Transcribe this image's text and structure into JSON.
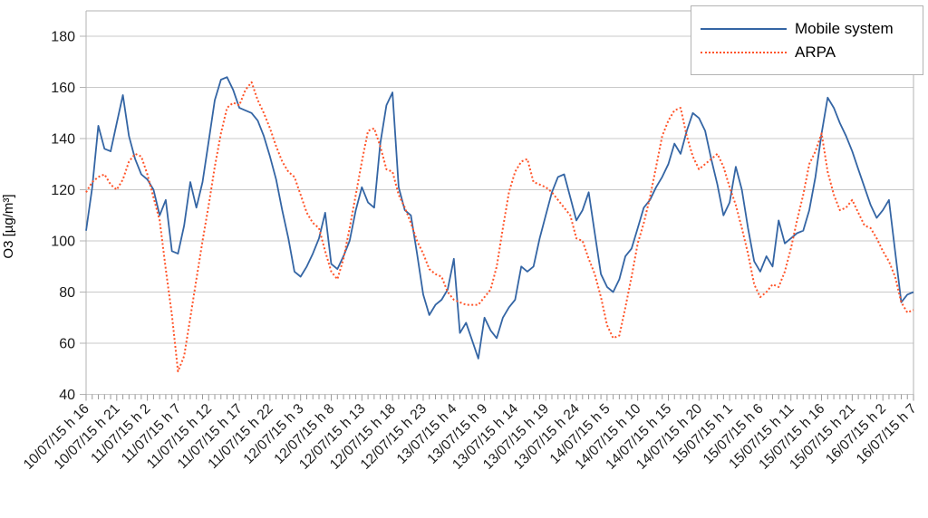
{
  "chart_data": {
    "type": "line",
    "title": "",
    "xlabel": "",
    "ylabel": "O3 [µg/m³]",
    "ylim": [
      40,
      180
    ],
    "ytick_step": 20,
    "ytick_labels": [
      40,
      60,
      80,
      100,
      120,
      140,
      160,
      180
    ],
    "grid": true,
    "legend_position": "top-right",
    "x_unit": "hourly samples",
    "x_labels_every": 5,
    "x_tick_labels": [
      "10/07/15 h 16",
      "10/07/15 h 21",
      "11/07/15 h 2",
      "11/07/15 h 7",
      "11/07/15 h 12",
      "11/07/15 h 17",
      "11/07/15 h 22",
      "12/07/15 h 3",
      "12/07/15 h 8",
      "12/07/15 h 13",
      "12/07/15 h 18",
      "12/07/15 h 23",
      "13/07/15 h 4",
      "13/07/15 h 9",
      "13/07/15 h 14",
      "13/07/15 h 19",
      "13/07/15 h 24",
      "14/07/15 h 5",
      "14/07/15 h 10",
      "14/07/15 h 15",
      "14/07/15 h 20",
      "15/07/15 h 1",
      "15/07/15 h 6",
      "15/07/15 h 11",
      "15/07/15 h 16",
      "15/07/15 h 21",
      "16/07/15 h 2",
      "16/07/15 h 7"
    ],
    "series": [
      {
        "name": "Mobile system",
        "color": "#3465a4",
        "style": "solid",
        "values": [
          104,
          121,
          145,
          136,
          135,
          146,
          157,
          141,
          132,
          126,
          124,
          120,
          110,
          116,
          96,
          95,
          106,
          123,
          113,
          123,
          139,
          155,
          163,
          164,
          159,
          152,
          151,
          150,
          147,
          141,
          133,
          124,
          112,
          101,
          88,
          86,
          90,
          95,
          101,
          111,
          91,
          89,
          94,
          100,
          112,
          121,
          115,
          113,
          138,
          153,
          158,
          121,
          112,
          110,
          95,
          79,
          71,
          75,
          77,
          81,
          93,
          64,
          68,
          61,
          54,
          70,
          65,
          62,
          70,
          74,
          77,
          90,
          88,
          90,
          101,
          110,
          119,
          125,
          126,
          117,
          108,
          112,
          119,
          103,
          87,
          82,
          80,
          85,
          94,
          97,
          105,
          113,
          116,
          121,
          125,
          130,
          138,
          134,
          143,
          150,
          148,
          143,
          132,
          122,
          110,
          115,
          129,
          120,
          105,
          92,
          88,
          94,
          90,
          108,
          99,
          101,
          103,
          104,
          112,
          125,
          142,
          156,
          152,
          146,
          141,
          135,
          128,
          121,
          114,
          109,
          112,
          116,
          96,
          76,
          79,
          80
        ]
      },
      {
        "name": "ARPA",
        "color": "#ff5429",
        "style": "dotted",
        "values": [
          119,
          123,
          125,
          126,
          122,
          120,
          124,
          131,
          134,
          133,
          126,
          117,
          108,
          89,
          71,
          49,
          55,
          70,
          85,
          100,
          114,
          129,
          142,
          152,
          154,
          153,
          159,
          162,
          155,
          150,
          144,
          137,
          131,
          127,
          125,
          118,
          111,
          107,
          105,
          96,
          88,
          85,
          93,
          105,
          118,
          131,
          143,
          144,
          137,
          128,
          127,
          118,
          113,
          107,
          100,
          95,
          89,
          87,
          86,
          80,
          77,
          76,
          75,
          75,
          75,
          78,
          81,
          90,
          105,
          119,
          127,
          131,
          132,
          123,
          122,
          121,
          119,
          116,
          113,
          110,
          101,
          100,
          93,
          87,
          78,
          67,
          62,
          63,
          74,
          86,
          99,
          107,
          117,
          129,
          141,
          147,
          151,
          152,
          141,
          133,
          128,
          130,
          132,
          134,
          129,
          121,
          114,
          105,
          95,
          83,
          78,
          80,
          83,
          82,
          88,
          97,
          108,
          118,
          130,
          135,
          142,
          127,
          118,
          112,
          113,
          116,
          111,
          106,
          105,
          101,
          96,
          92,
          86,
          76,
          72,
          73
        ]
      }
    ],
    "axis_color": "#b3b3b3",
    "gridline_color": "#c9c9c9",
    "tick_color": "#999999"
  }
}
